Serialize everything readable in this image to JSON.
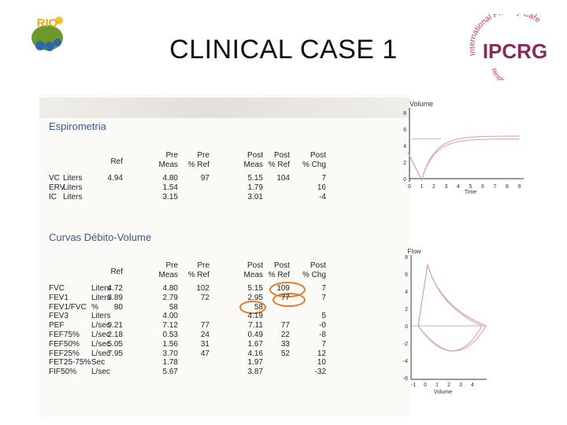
{
  "title": "CLINICAL CASE 1",
  "logos": {
    "left_text": "RIO",
    "right_text": "IPCRG",
    "right_arc_top": "International Primary Care",
    "right_arc_bottom": "Respiratory Group"
  },
  "spirometria": {
    "title": "Espirometria",
    "headers": {
      "ref": "Ref",
      "pre1": "Pre",
      "pre1b": "Meas",
      "pre2": "Pre",
      "pre2b": "% Ref",
      "post1": "Post",
      "post1b": "Meas",
      "post2": "Post",
      "post2b": "% Ref",
      "post3": "Post",
      "post3b": "% Chg"
    },
    "rows": [
      {
        "name": "VC",
        "unit": "Liters",
        "ref": "4.94",
        "pre": "4.80",
        "pre_ref": "97",
        "post": "5.15",
        "post_ref": "104",
        "chg": "7"
      },
      {
        "name": "ERV",
        "unit": "Liters",
        "ref": "",
        "pre": "1.54",
        "pre_ref": "",
        "post": "1.79",
        "post_ref": "",
        "chg": "16"
      },
      {
        "name": "IC",
        "unit": "Liters",
        "ref": "",
        "pre": "3.15",
        "pre_ref": "",
        "post": "3.01",
        "post_ref": "",
        "chg": "-4"
      }
    ]
  },
  "curvas": {
    "title": "Curvas Débito-Volume",
    "headers": {
      "ref": "Ref",
      "pre1": "Pre",
      "pre1b": "Meas",
      "pre2": "Pre",
      "pre2b": "% Ref",
      "post1": "Post",
      "post1b": "Meas",
      "post2": "Post",
      "post2b": "% Ref",
      "post3": "Post",
      "post3b": "% Chg"
    },
    "rows": [
      {
        "name": "FVC",
        "unit": "Liters",
        "ref": "4.72",
        "pre": "4.80",
        "pre_ref": "102",
        "post": "5.15",
        "post_ref": "109",
        "chg": "7"
      },
      {
        "name": "FEV1",
        "unit": "Liters",
        "ref": "3.89",
        "pre": "2.79",
        "pre_ref": "72",
        "post": "2.95",
        "post_ref": "77",
        "chg": "7"
      },
      {
        "name": "FEV1/FVC",
        "unit": "%",
        "ref": "80",
        "pre": "58",
        "pre_ref": "",
        "post": "58",
        "post_ref": "",
        "chg": ""
      },
      {
        "name": "FEV3",
        "unit": "Liters",
        "ref": "",
        "pre": "4.00",
        "pre_ref": "",
        "post": "4.19",
        "post_ref": "",
        "chg": "5"
      },
      {
        "name": "PEF",
        "unit": "L/sec",
        "ref": "9.21",
        "pre": "7.12",
        "pre_ref": "77",
        "post": "7.11",
        "post_ref": "77",
        "chg": "-0"
      },
      {
        "name": "FEF75%",
        "unit": "L/sec",
        "ref": "2.18",
        "pre": "0.53",
        "pre_ref": "24",
        "post": "0.49",
        "post_ref": "22",
        "chg": "-8"
      },
      {
        "name": "FEF50%",
        "unit": "L/sec",
        "ref": "5.05",
        "pre": "1.56",
        "pre_ref": "31",
        "post": "1.67",
        "post_ref": "33",
        "chg": "7"
      },
      {
        "name": "FEF25%",
        "unit": "L/sec",
        "ref": "7.95",
        "pre": "3.70",
        "pre_ref": "47",
        "post": "4.16",
        "post_ref": "52",
        "chg": "12"
      },
      {
        "name": "FET25-75%",
        "unit": "Sec",
        "ref": "",
        "pre": "1.78",
        "pre_ref": "",
        "post": "1.97",
        "post_ref": "",
        "chg": "10"
      },
      {
        "name": "FIF50%",
        "unit": "L/sec",
        "ref": "",
        "pre": "5.67",
        "pre_ref": "",
        "post": "3.87",
        "post_ref": "",
        "chg": "-32"
      }
    ]
  },
  "volume_chart": {
    "title": "Volume",
    "y_ticks": [
      "8",
      "6",
      "4",
      "2",
      "0"
    ],
    "x_ticks": [
      "0",
      "1",
      "2",
      "3",
      "4",
      "5",
      "6",
      "7",
      "8",
      "9"
    ],
    "x_label": "Time"
  },
  "flow_chart": {
    "title": "Flow",
    "y_ticks": [
      "8",
      "6",
      "4",
      "2",
      "0",
      "-2",
      "-4",
      "-6"
    ],
    "x_ticks": [
      "-1",
      "0",
      "1",
      "2",
      "3",
      "4"
    ],
    "x_label": "Volume"
  },
  "colors": {
    "section_title": "#3b5a88",
    "highlight": "#e07b29",
    "curve": "#d89aa8"
  }
}
